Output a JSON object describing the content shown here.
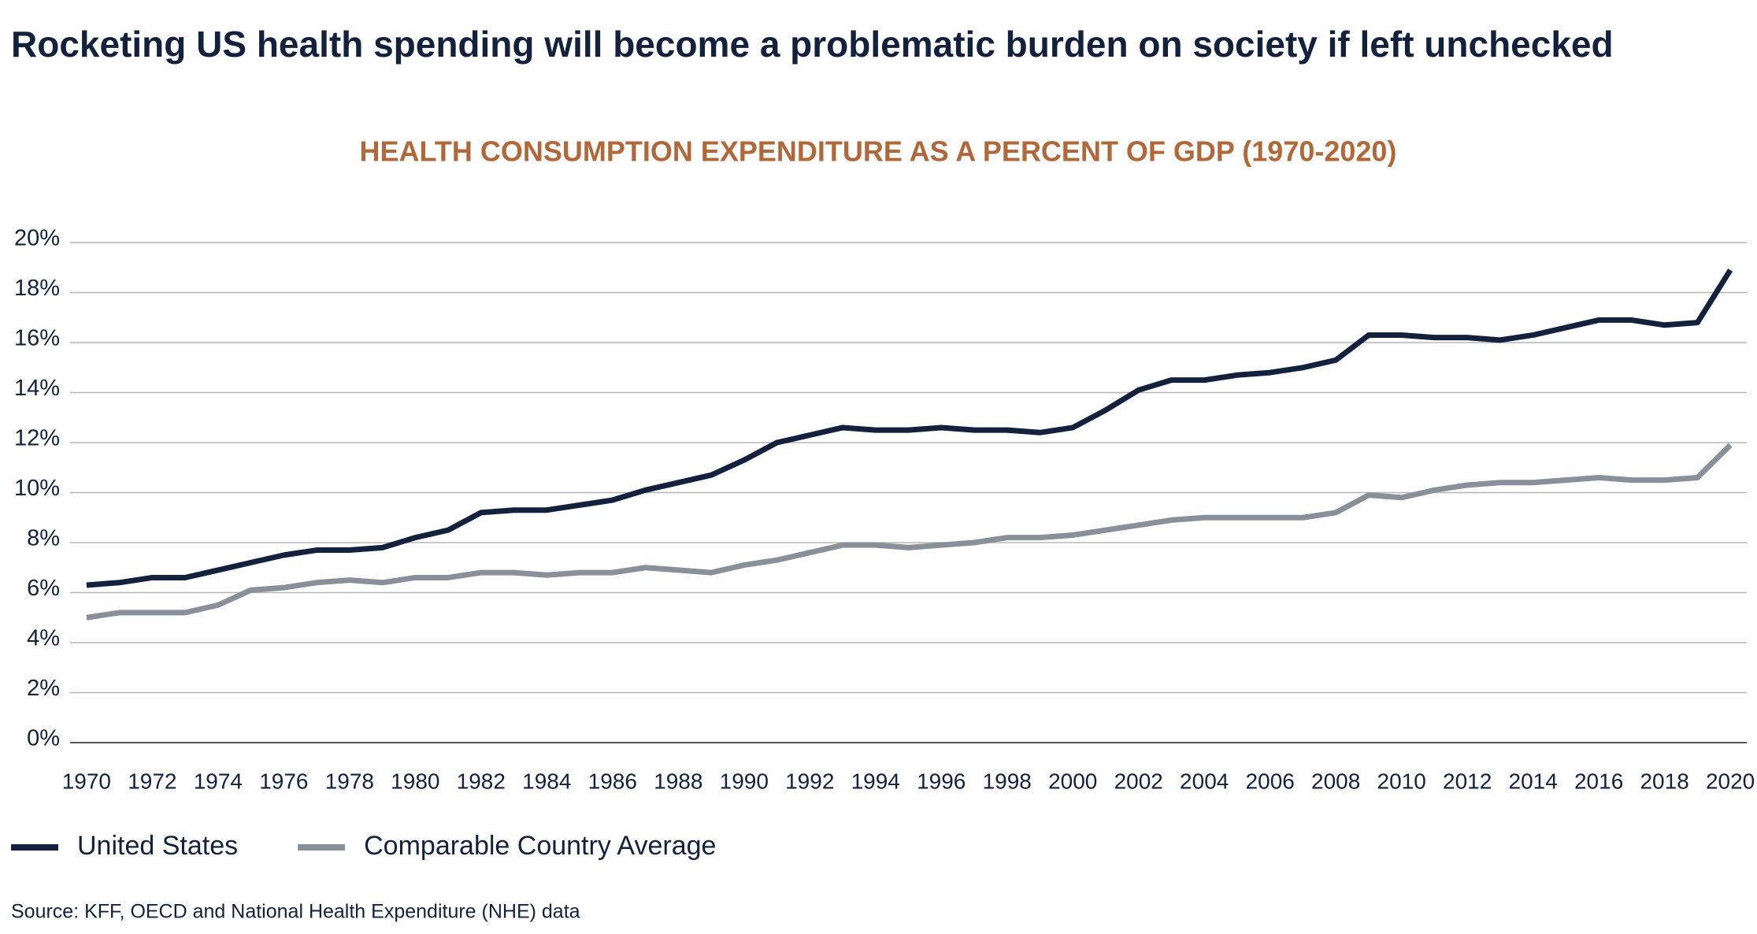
{
  "chart_data": {
    "type": "line",
    "title": "Rocketing US health spending will become a problematic burden on society if left unchecked",
    "subtitle": "HEALTH CONSUMPTION EXPENDITURE AS A PERCENT OF GDP (1970-2020)",
    "source": "Source: KFF, OECD and National Health Expenditure (NHE) data",
    "x": [
      1970,
      1971,
      1972,
      1973,
      1974,
      1975,
      1976,
      1977,
      1978,
      1979,
      1980,
      1981,
      1982,
      1983,
      1984,
      1985,
      1986,
      1987,
      1988,
      1989,
      1990,
      1991,
      1992,
      1993,
      1994,
      1995,
      1996,
      1997,
      1998,
      1999,
      2000,
      2001,
      2002,
      2003,
      2004,
      2005,
      2006,
      2007,
      2008,
      2009,
      2010,
      2011,
      2012,
      2013,
      2014,
      2015,
      2016,
      2017,
      2018,
      2019,
      2020
    ],
    "series": [
      {
        "name": "United States",
        "color": "#13213d",
        "values": [
          6.3,
          6.4,
          6.6,
          6.6,
          6.9,
          7.2,
          7.5,
          7.7,
          7.7,
          7.8,
          8.2,
          8.5,
          9.2,
          9.3,
          9.3,
          9.5,
          9.7,
          10.1,
          10.4,
          10.7,
          11.3,
          12.0,
          12.3,
          12.6,
          12.5,
          12.5,
          12.6,
          12.5,
          12.5,
          12.4,
          12.6,
          13.3,
          14.1,
          14.5,
          14.5,
          14.7,
          14.8,
          15.0,
          15.3,
          16.3,
          16.3,
          16.2,
          16.2,
          16.1,
          16.3,
          16.6,
          16.9,
          16.9,
          16.7,
          16.8,
          18.9
        ]
      },
      {
        "name": "Comparable Country Average",
        "color": "#8a9099",
        "values": [
          5.0,
          5.2,
          5.2,
          5.2,
          5.5,
          6.1,
          6.2,
          6.4,
          6.5,
          6.4,
          6.6,
          6.6,
          6.8,
          6.8,
          6.7,
          6.8,
          6.8,
          7.0,
          6.9,
          6.8,
          7.1,
          7.3,
          7.6,
          7.9,
          7.9,
          7.8,
          7.9,
          8.0,
          8.2,
          8.2,
          8.3,
          8.5,
          8.7,
          8.9,
          9.0,
          9.0,
          9.0,
          9.0,
          9.2,
          9.9,
          9.8,
          10.1,
          10.3,
          10.4,
          10.4,
          10.5,
          10.6,
          10.5,
          10.5,
          10.6,
          11.9
        ]
      }
    ],
    "xlim": [
      1969.5,
      2020.5
    ],
    "xticks": [
      1970,
      1972,
      1974,
      1976,
      1978,
      1980,
      1982,
      1984,
      1986,
      1988,
      1990,
      1992,
      1994,
      1996,
      1998,
      2000,
      2002,
      2004,
      2006,
      2008,
      2010,
      2012,
      2014,
      2016,
      2018,
      2020
    ],
    "ylim": [
      0,
      20
    ],
    "yticks": [
      {
        "value": 0,
        "label": "0%"
      },
      {
        "value": 2,
        "label": "2%"
      },
      {
        "value": 4,
        "label": "4%"
      },
      {
        "value": 6,
        "label": "6%"
      },
      {
        "value": 8,
        "label": "8%"
      },
      {
        "value": 10,
        "label": "10%"
      },
      {
        "value": 12,
        "label": "12%"
      },
      {
        "value": 14,
        "label": "14%"
      },
      {
        "value": 16,
        "label": "16%"
      },
      {
        "value": 18,
        "label": "18%"
      },
      {
        "value": 20,
        "label": "20%"
      }
    ],
    "grid": true,
    "legend": "bottom-left"
  }
}
